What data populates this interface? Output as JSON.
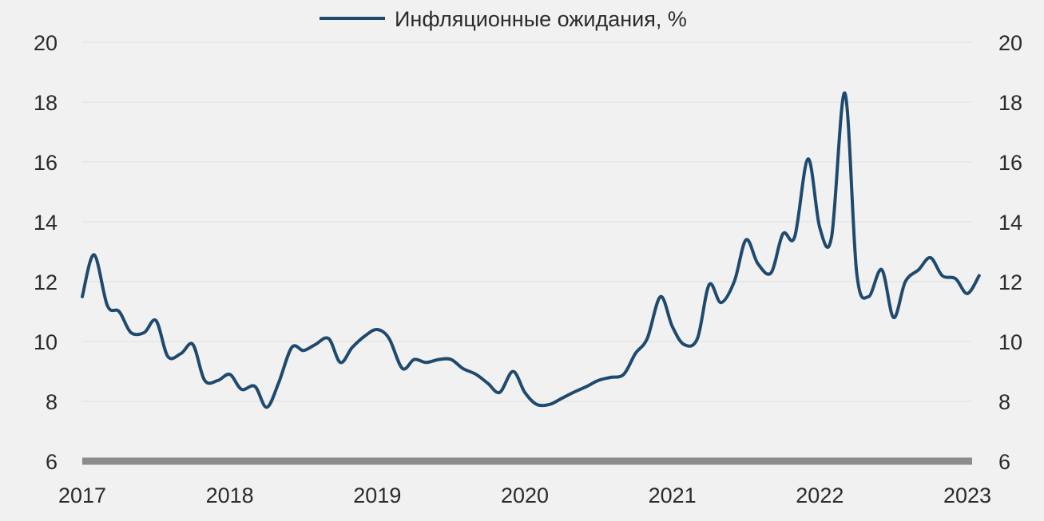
{
  "chart_data": {
    "type": "line",
    "title": "",
    "xlabel": "",
    "ylabel": "",
    "ylim": [
      6,
      20
    ],
    "yticks": [
      6,
      8,
      10,
      12,
      14,
      16,
      18,
      20
    ],
    "yticks_right": true,
    "xlim": [
      2017,
      2023
    ],
    "xticks": [
      2017,
      2018,
      2019,
      2020,
      2021,
      2022,
      2023
    ],
    "grid": true,
    "legend_position": "top-center",
    "series": [
      {
        "name": "Инфляционные ожидания, %",
        "color": "#1f4a6e",
        "points": [
          [
            2017.0,
            11.5
          ],
          [
            2017.08,
            12.9
          ],
          [
            2017.17,
            11.2
          ],
          [
            2017.25,
            11.0
          ],
          [
            2017.33,
            10.3
          ],
          [
            2017.42,
            10.3
          ],
          [
            2017.5,
            10.7
          ],
          [
            2017.58,
            9.5
          ],
          [
            2017.67,
            9.6
          ],
          [
            2017.75,
            9.9
          ],
          [
            2017.83,
            8.7
          ],
          [
            2017.92,
            8.7
          ],
          [
            2018.0,
            8.9
          ],
          [
            2018.08,
            8.4
          ],
          [
            2018.17,
            8.5
          ],
          [
            2018.25,
            7.8
          ],
          [
            2018.33,
            8.6
          ],
          [
            2018.42,
            9.8
          ],
          [
            2018.5,
            9.7
          ],
          [
            2018.58,
            9.9
          ],
          [
            2018.67,
            10.1
          ],
          [
            2018.75,
            9.3
          ],
          [
            2018.83,
            9.8
          ],
          [
            2018.92,
            10.2
          ],
          [
            2019.0,
            10.4
          ],
          [
            2019.08,
            10.1
          ],
          [
            2019.17,
            9.1
          ],
          [
            2019.25,
            9.4
          ],
          [
            2019.33,
            9.3
          ],
          [
            2019.42,
            9.4
          ],
          [
            2019.5,
            9.4
          ],
          [
            2019.58,
            9.1
          ],
          [
            2019.67,
            8.9
          ],
          [
            2019.75,
            8.6
          ],
          [
            2019.83,
            8.3
          ],
          [
            2019.92,
            9.0
          ],
          [
            2020.0,
            8.3
          ],
          [
            2020.08,
            7.9
          ],
          [
            2020.17,
            7.9
          ],
          [
            2020.25,
            8.1
          ],
          [
            2020.33,
            8.3
          ],
          [
            2020.42,
            8.5
          ],
          [
            2020.5,
            8.7
          ],
          [
            2020.58,
            8.8
          ],
          [
            2020.67,
            8.9
          ],
          [
            2020.75,
            9.6
          ],
          [
            2020.83,
            10.1
          ],
          [
            2020.92,
            11.5
          ],
          [
            2021.0,
            10.5
          ],
          [
            2021.08,
            9.9
          ],
          [
            2021.17,
            10.1
          ],
          [
            2021.25,
            11.9
          ],
          [
            2021.33,
            11.3
          ],
          [
            2021.42,
            12.0
          ],
          [
            2021.5,
            13.4
          ],
          [
            2021.58,
            12.6
          ],
          [
            2021.67,
            12.3
          ],
          [
            2021.75,
            13.6
          ],
          [
            2021.83,
            13.5
          ],
          [
            2021.92,
            16.1
          ],
          [
            2022.0,
            13.8
          ],
          [
            2022.08,
            13.5
          ],
          [
            2022.17,
            18.3
          ],
          [
            2022.25,
            12.3
          ],
          [
            2022.33,
            11.5
          ],
          [
            2022.42,
            12.4
          ],
          [
            2022.5,
            10.8
          ],
          [
            2022.58,
            12.0
          ],
          [
            2022.67,
            12.4
          ],
          [
            2022.75,
            12.8
          ],
          [
            2022.83,
            12.2
          ],
          [
            2022.92,
            12.1
          ],
          [
            2023.0,
            11.6
          ],
          [
            2023.08,
            12.2
          ]
        ]
      }
    ]
  }
}
